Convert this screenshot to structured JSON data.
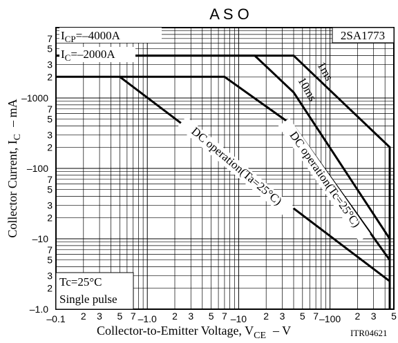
{
  "chart_data": {
    "type": "line",
    "title": "A S O",
    "part_number": "2SA1773",
    "code": "ITR04621",
    "xlabel": {
      "main": "Collector-to-Emitter Voltage, V",
      "sub": "CE",
      "unit": "–  V"
    },
    "ylabel": {
      "main": "Collector Current, I",
      "sub": "C",
      "unit": "–  mA"
    },
    "x_scale": "log",
    "y_scale": "log",
    "xlim": [
      -0.1,
      -500
    ],
    "ylim": [
      -1.0,
      -10000
    ],
    "grid": true,
    "x_major_ticks": [
      {
        "v": 0.1,
        "label": "–0.1"
      },
      {
        "v": 1,
        "label": "–1.0"
      },
      {
        "v": 10,
        "label": "–10"
      },
      {
        "v": 100,
        "label": "–100"
      }
    ],
    "x_minor_labels": [
      {
        "v": 0.2,
        "label": "2"
      },
      {
        "v": 0.3,
        "label": "3"
      },
      {
        "v": 0.5,
        "label": "5"
      },
      {
        "v": 0.7,
        "label": "7"
      },
      {
        "v": 2,
        "label": "2"
      },
      {
        "v": 3,
        "label": "3"
      },
      {
        "v": 5,
        "label": "5"
      },
      {
        "v": 7,
        "label": "7"
      },
      {
        "v": 20,
        "label": "2"
      },
      {
        "v": 30,
        "label": "3"
      },
      {
        "v": 50,
        "label": "5"
      },
      {
        "v": 70,
        "label": "7"
      },
      {
        "v": 200,
        "label": "2"
      },
      {
        "v": 300,
        "label": "3"
      },
      {
        "v": 500,
        "label": "5"
      }
    ],
    "y_major_ticks": [
      {
        "v": 1,
        "label": "–1.0"
      },
      {
        "v": 10,
        "label": "–10"
      },
      {
        "v": 100,
        "label": "–100"
      },
      {
        "v": 1000,
        "label": "–1000"
      }
    ],
    "y_minor_labels": [
      {
        "v": 2,
        "label": "2"
      },
      {
        "v": 3,
        "label": "3"
      },
      {
        "v": 5,
        "label": "5"
      },
      {
        "v": 7,
        "label": "7"
      },
      {
        "v": 20,
        "label": "2"
      },
      {
        "v": 30,
        "label": "3"
      },
      {
        "v": 50,
        "label": "5"
      },
      {
        "v": 70,
        "label": "7"
      },
      {
        "v": 200,
        "label": "2"
      },
      {
        "v": 300,
        "label": "3"
      },
      {
        "v": 500,
        "label": "5"
      },
      {
        "v": 700,
        "label": "7"
      },
      {
        "v": 2000,
        "label": "2"
      },
      {
        "v": 3000,
        "label": "3"
      },
      {
        "v": 5000,
        "label": "5"
      },
      {
        "v": 7000,
        "label": "7"
      }
    ],
    "series": [
      {
        "name": "1ms",
        "points": [
          [
            0.1,
            4000
          ],
          [
            40,
            4000
          ],
          [
            450,
            200
          ],
          [
            450,
            1
          ]
        ]
      },
      {
        "name": "10ms",
        "points": [
          [
            0.1,
            4000
          ],
          [
            15,
            4000
          ],
          [
            40,
            1200
          ],
          [
            450,
            10
          ]
        ]
      },
      {
        "name": "DC operation(Tc=25°C)",
        "points": [
          [
            0.1,
            2000
          ],
          [
            7,
            2000
          ],
          [
            40,
            400
          ],
          [
            450,
            5
          ]
        ]
      },
      {
        "name": "DC operation(Ta=25°C)",
        "points": [
          [
            0.5,
            2000
          ],
          [
            450,
            2.5
          ]
        ]
      }
    ],
    "limits": [
      {
        "label": "I",
        "sub": "CP",
        "value": "=–4000A"
      },
      {
        "label": "I",
        "sub": "C",
        "value": "=–2000A"
      }
    ],
    "curve_labels": [
      "1ms",
      "10ms",
      "DC operation(Tc=25°C)",
      "DC operation(Ta=25°C)"
    ],
    "conditions": [
      "Tc=25°C",
      "Single pulse"
    ]
  }
}
